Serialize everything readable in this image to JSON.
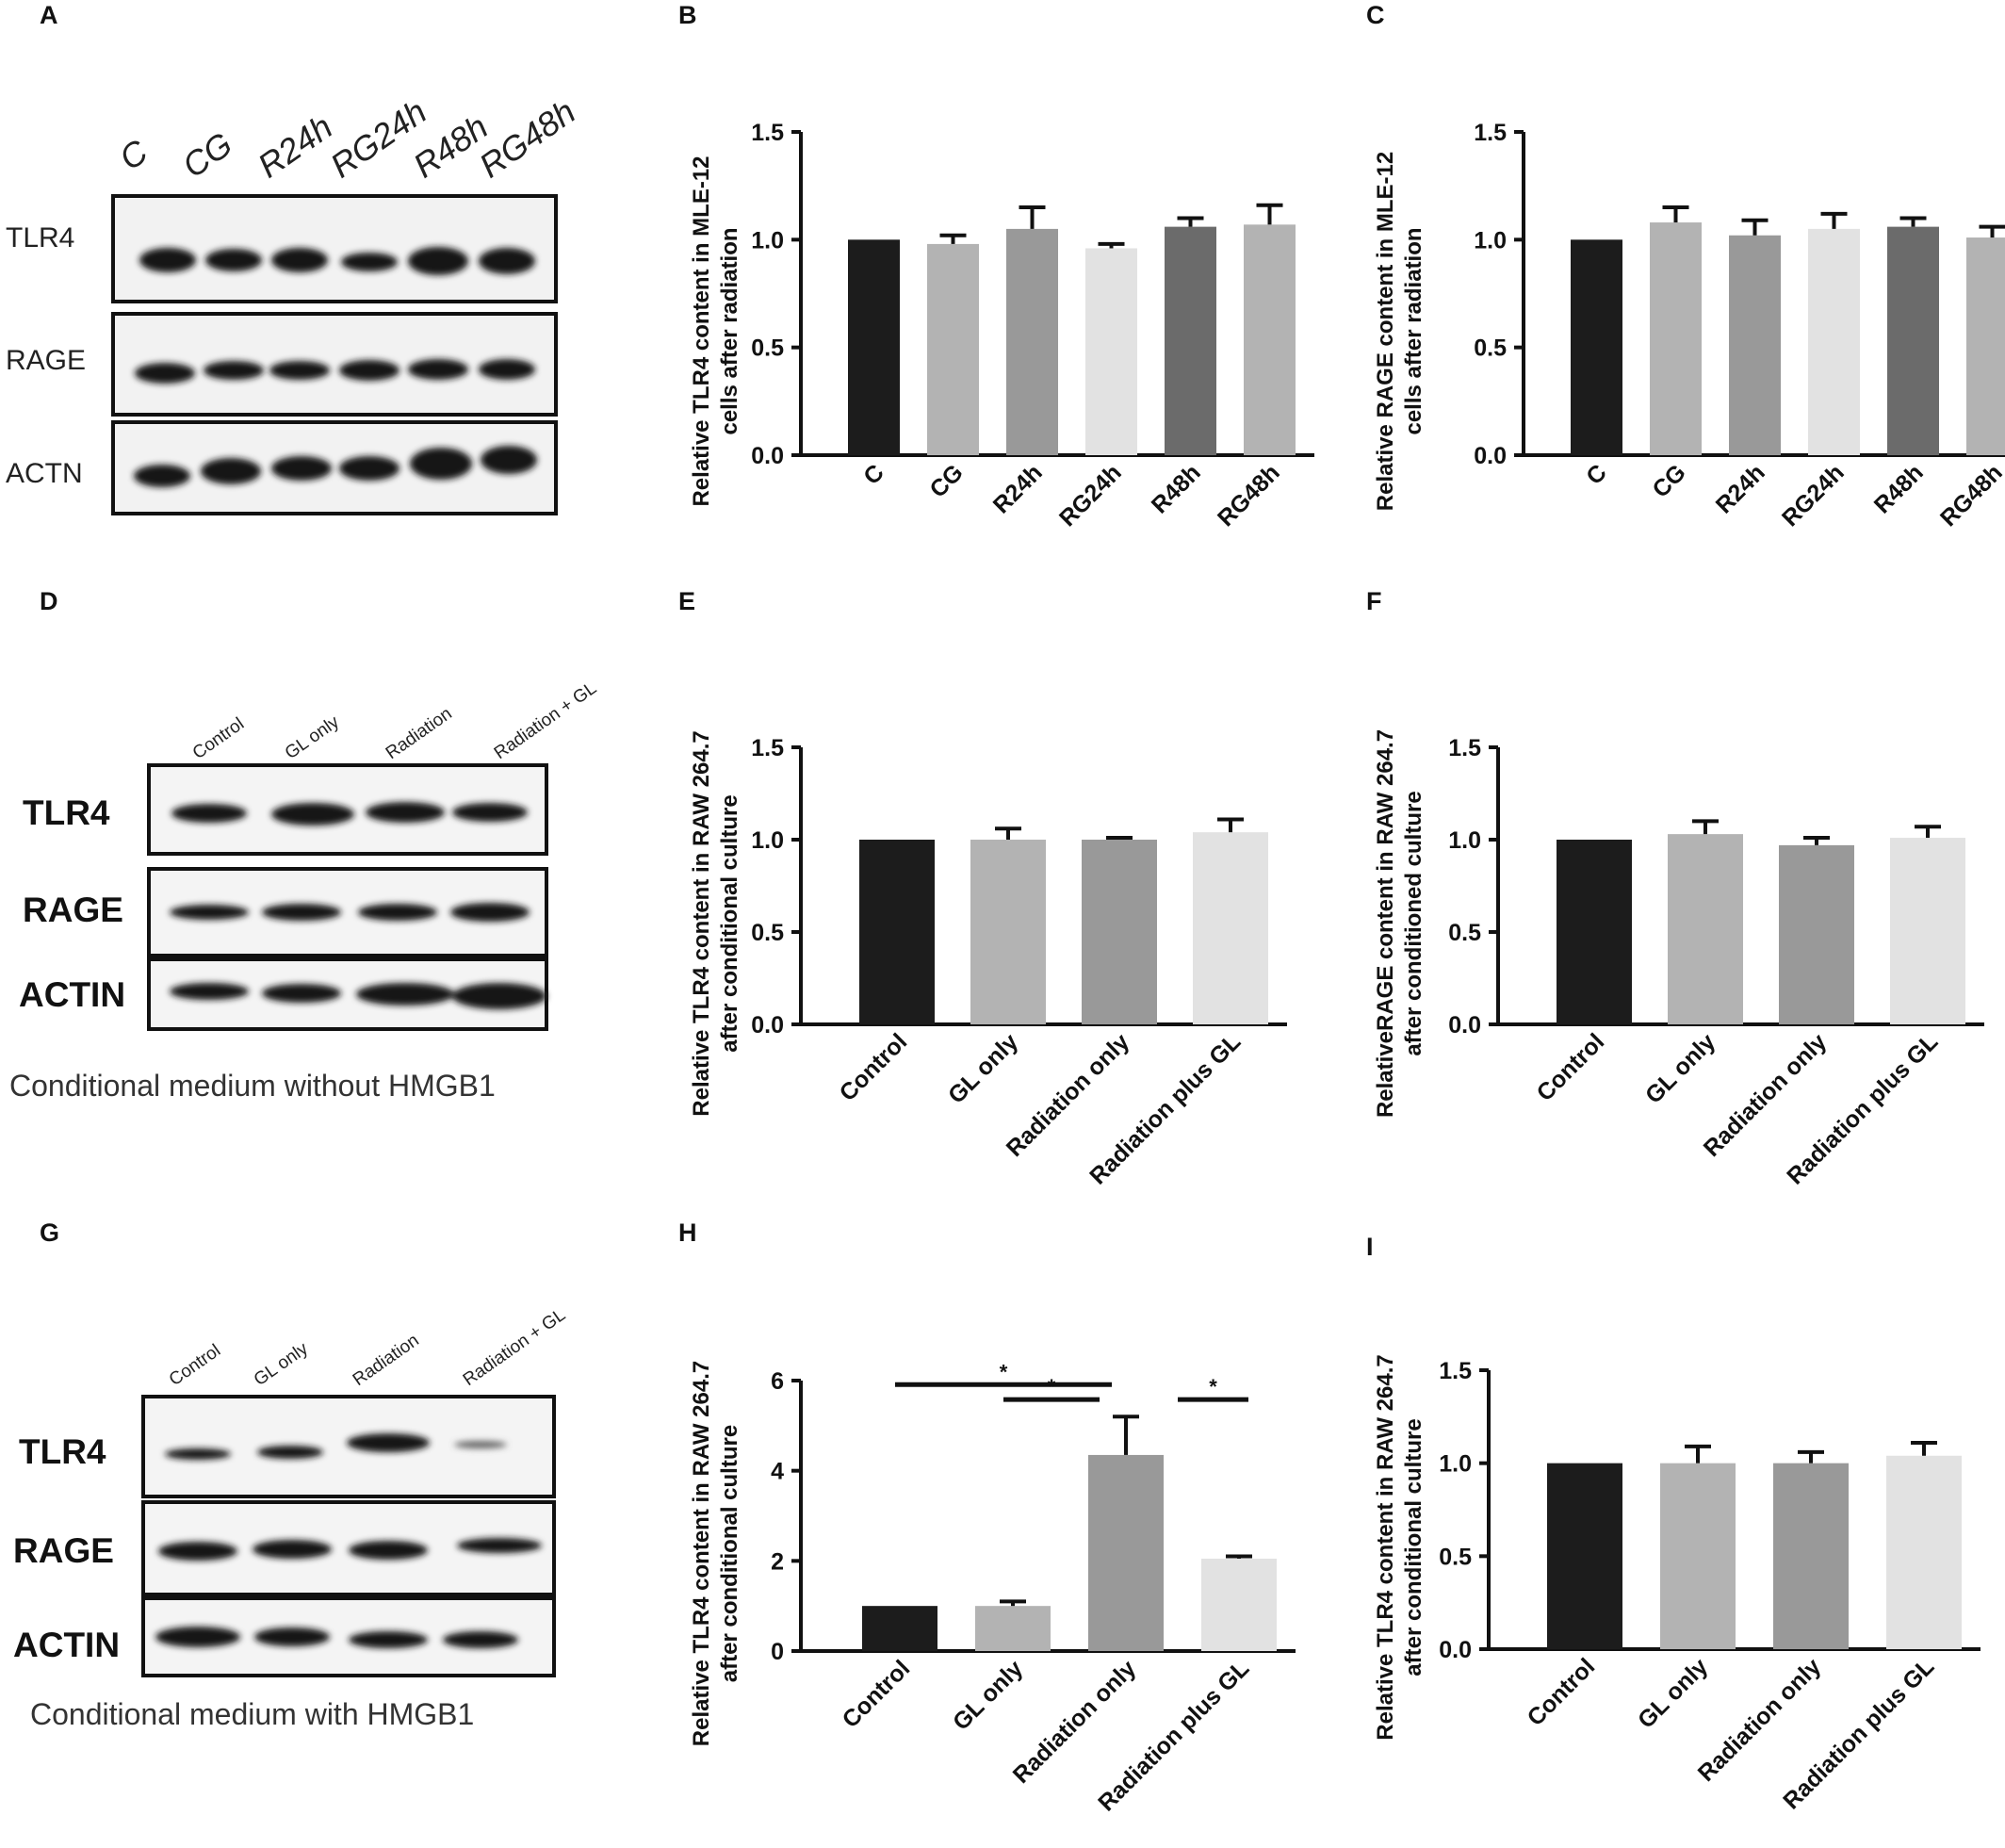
{
  "panel_letters": [
    "A",
    "B",
    "C",
    "D",
    "E",
    "F",
    "G",
    "H",
    "I"
  ],
  "blots": {
    "A": {
      "lanes": [
        "C",
        "CG",
        "R24h",
        "RG24h",
        "R48h",
        "RG48h"
      ],
      "rows": [
        "TLR4",
        "RAGE",
        "ACTN"
      ],
      "caption": ""
    },
    "D": {
      "lanes": [
        "Control",
        "GL only",
        "Radiation",
        "Radiation + GL"
      ],
      "rows": [
        "TLR4",
        "RAGE",
        "ACTIN"
      ],
      "caption": "Conditional medium without HMGB1"
    },
    "G": {
      "lanes": [
        "Control",
        "GL only",
        "Radiation",
        "Radiation + GL"
      ],
      "rows": [
        "TLR4",
        "RAGE",
        "ACTIN"
      ],
      "caption": "Conditional medium with HMGB1"
    }
  },
  "chart_data": [
    {
      "panel": "B",
      "type": "bar",
      "ylabel": "Relative TLR4 content in MLE-12 cells after radiation",
      "categories": [
        "C",
        "CG",
        "R24h",
        "RG24h",
        "R48h",
        "RG48h"
      ],
      "values": [
        1.0,
        0.98,
        1.05,
        0.96,
        1.06,
        1.07
      ],
      "errors": [
        0.0,
        0.04,
        0.1,
        0.02,
        0.04,
        0.09
      ],
      "colors": [
        "#1c1c1c",
        "#b3b3b3",
        "#999999",
        "#e2e2e2",
        "#6b6b6b",
        "#b3b3b3"
      ],
      "yticks": [
        "0.0",
        "0.5",
        "1.0",
        "1.5"
      ],
      "ylim": [
        0,
        1.5
      ]
    },
    {
      "panel": "C",
      "type": "bar",
      "ylabel": "Relative RAGE content in MLE-12 cells after radiation",
      "categories": [
        "C",
        "CG",
        "R24h",
        "RG24h",
        "R48h",
        "RG48h"
      ],
      "values": [
        1.0,
        1.08,
        1.02,
        1.05,
        1.06,
        1.01
      ],
      "errors": [
        0.0,
        0.07,
        0.07,
        0.07,
        0.04,
        0.05
      ],
      "colors": [
        "#1c1c1c",
        "#b3b3b3",
        "#999999",
        "#e2e2e2",
        "#6b6b6b",
        "#b3b3b3"
      ],
      "yticks": [
        "0.0",
        "0.5",
        "1.0",
        "1.5"
      ],
      "ylim": [
        0,
        1.5
      ]
    },
    {
      "panel": "E",
      "type": "bar",
      "ylabel": "Relative TLR4 content in RAW 264.7 after conditional culture",
      "categories": [
        "Control",
        "GL only",
        "Radiation only",
        "Radiation plus GL"
      ],
      "values": [
        1.0,
        1.0,
        1.0,
        1.04
      ],
      "errors": [
        0.0,
        0.06,
        0.01,
        0.07
      ],
      "colors": [
        "#1c1c1c",
        "#b3b3b3",
        "#999999",
        "#e2e2e2"
      ],
      "yticks": [
        "0.0",
        "0.5",
        "1.0",
        "1.5"
      ],
      "ylim": [
        0,
        1.5
      ]
    },
    {
      "panel": "F",
      "type": "bar",
      "ylabel": "RelativeRAGE content in RAW 264.7 after conditioned culture",
      "categories": [
        "Control",
        "GL only",
        "Radiation only",
        "Radiation plus GL"
      ],
      "values": [
        1.0,
        1.03,
        0.97,
        1.01
      ],
      "errors": [
        0.0,
        0.07,
        0.04,
        0.06
      ],
      "colors": [
        "#1c1c1c",
        "#b3b3b3",
        "#999999",
        "#e2e2e2"
      ],
      "yticks": [
        "0.0",
        "0.5",
        "1.0",
        "1.5"
      ],
      "ylim": [
        0,
        1.5
      ]
    },
    {
      "panel": "H",
      "type": "bar",
      "ylabel": "Relative TLR4 content in RAW 264.7 after conditional culture",
      "categories": [
        "Control",
        "GL only",
        "Radiation only",
        "Radiation plus GL"
      ],
      "values": [
        1.0,
        1.0,
        4.35,
        2.05
      ],
      "errors": [
        0.0,
        0.1,
        0.85,
        0.05
      ],
      "colors": [
        "#1c1c1c",
        "#b3b3b3",
        "#999999",
        "#e2e2e2"
      ],
      "yticks": [
        "0",
        "2",
        "4",
        "6"
      ],
      "ylim": [
        0,
        6
      ],
      "significance": [
        {
          "from": 0,
          "to": 2,
          "label": "*"
        },
        {
          "from": 1,
          "to": 2,
          "label": "*"
        },
        {
          "from": 2,
          "to": 3,
          "label": "*"
        }
      ]
    },
    {
      "panel": "I",
      "type": "bar",
      "ylabel": "Relative TLR4 content in RAW 264.7 after conditional culture",
      "categories": [
        "Control",
        "GL only",
        "Radiation only",
        "Radiation plus GL"
      ],
      "values": [
        1.0,
        1.0,
        1.0,
        1.04
      ],
      "errors": [
        0.0,
        0.09,
        0.06,
        0.07
      ],
      "colors": [
        "#1c1c1c",
        "#b3b3b3",
        "#999999",
        "#e2e2e2"
      ],
      "yticks": [
        "0.0",
        "0.5",
        "1.0",
        "1.5"
      ],
      "ylim": [
        0,
        1.5
      ]
    }
  ]
}
